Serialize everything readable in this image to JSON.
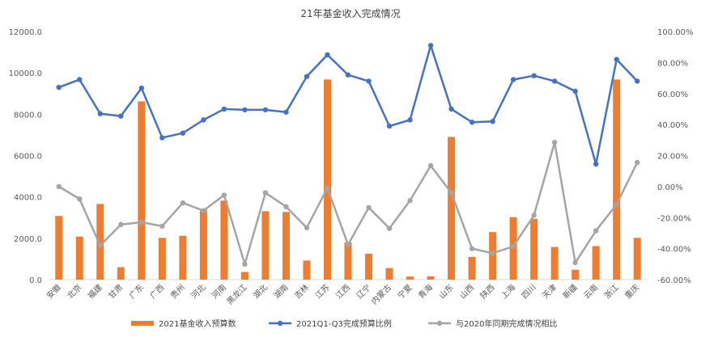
{
  "chart_data": {
    "type": "bar+line",
    "title": "21年基金收入完成情况",
    "categories": [
      "安徽",
      "北京",
      "福建",
      "甘肃",
      "广东",
      "广西",
      "贵州",
      "河北",
      "河南",
      "黑龙江",
      "湖北",
      "湖南",
      "吉林",
      "江苏",
      "江西",
      "辽宁",
      "内蒙古",
      "宁夏",
      "青海",
      "山东",
      "山西",
      "陕西",
      "上海",
      "四川",
      "天津",
      "新疆",
      "云南",
      "浙江",
      "重庆"
    ],
    "series": [
      {
        "name": "2021基金收入预算数",
        "type": "bar",
        "axis": "left",
        "color": "#ED7D31",
        "values": [
          3080,
          2080,
          3660,
          600,
          8620,
          2020,
          2120,
          3380,
          3820,
          370,
          3310,
          3270,
          920,
          9680,
          1800,
          1250,
          560,
          150,
          160,
          6900,
          1100,
          2300,
          3020,
          2940,
          1580,
          480,
          1620,
          9680,
          2020
        ]
      },
      {
        "name": "2021Q1-Q3完成预算比例",
        "type": "line",
        "axis": "right",
        "color": "#4472C4",
        "values": [
          64.0,
          69.0,
          47.0,
          45.5,
          63.5,
          31.5,
          34.5,
          43.0,
          50.0,
          49.5,
          49.5,
          48.0,
          71.0,
          85.0,
          72.0,
          68.0,
          39.0,
          43.0,
          91.0,
          50.0,
          41.5,
          42.0,
          69.0,
          71.5,
          68.0,
          61.5,
          14.5,
          82.0,
          68.0
        ]
      },
      {
        "name": "与2020年同期完成情况相比",
        "type": "line",
        "axis": "right",
        "color": "#A5A5A5",
        "values": [
          0.0,
          -8.0,
          -38.0,
          -24.5,
          -23.0,
          -25.5,
          -10.5,
          -15.5,
          -5.5,
          -50.0,
          -4.0,
          -13.0,
          -26.5,
          -1.0,
          -37.5,
          -13.5,
          -27.0,
          -9.0,
          13.5,
          -4.0,
          -40.0,
          -43.0,
          -38.5,
          -18.5,
          28.5,
          -49.0,
          -28.5,
          -11.5,
          15.5
        ]
      }
    ],
    "y_left": {
      "min": 0,
      "max": 12000,
      "ticks": [
        "0.0",
        "2000.0",
        "4000.0",
        "6000.0",
        "8000.0",
        "10000.0",
        "12000.0"
      ]
    },
    "y_right": {
      "min": -60,
      "max": 100,
      "ticks": [
        "-60.00%",
        "-40.00%",
        "-20.00%",
        "0.00%",
        "20.00%",
        "40.00%",
        "60.00%",
        "80.00%",
        "100.00%"
      ]
    },
    "grid": false,
    "legend_position": "bottom"
  }
}
